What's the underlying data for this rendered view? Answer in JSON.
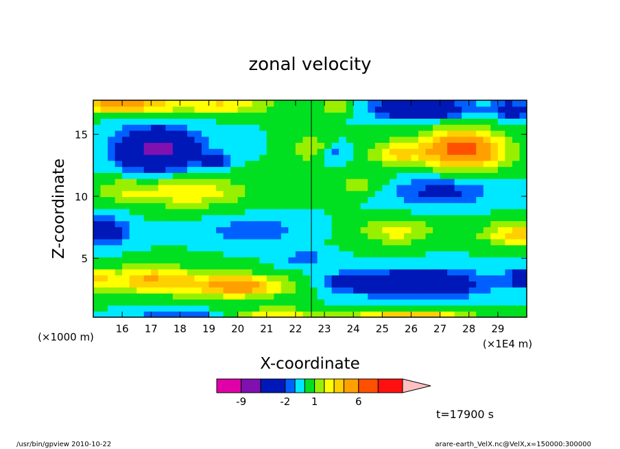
{
  "chart_data": {
    "type": "heatmap",
    "title": "zonal velocity",
    "xlabel": "X-coordinate",
    "ylabel": "Z-coordinate",
    "x_unit_label": "(×1E4 m)",
    "y_unit_label": "(×1000 m)",
    "x_ticks": [
      "16",
      "17",
      "18",
      "19",
      "20",
      "21",
      "22",
      "23",
      "24",
      "25",
      "26",
      "27",
      "28",
      "29"
    ],
    "y_ticks": [
      "5",
      "10",
      "15"
    ],
    "x_tick_values": [
      16,
      17,
      18,
      19,
      20,
      21,
      22,
      23,
      24,
      25,
      26,
      27,
      28,
      29
    ],
    "y_tick_values": [
      5,
      10,
      15
    ],
    "xlim": [
      15,
      30
    ],
    "ylim": [
      0.25,
      17.75
    ],
    "colorbar": {
      "tick_labels": [
        "-9",
        "-2",
        "1",
        "6"
      ],
      "bounds": [
        -15,
        -9,
        -6,
        -2,
        -1,
        0,
        1,
        2,
        3,
        4,
        6,
        9,
        15
      ],
      "colors": [
        "#e000a8",
        "#8010b0",
        "#0018b8",
        "#0060ff",
        "#00e8ff",
        "#00e020",
        "#98f000",
        "#ffff00",
        "#ffd000",
        "#ffa000",
        "#ff5000",
        "#ff1010",
        "#ff7878"
      ],
      "extend_color": "#ffc0c0"
    },
    "time_label": "t=17900 s",
    "levels": [
      -15,
      -9,
      -6,
      -2,
      -1,
      0,
      1,
      2,
      3,
      4,
      6,
      9,
      15
    ],
    "nx": 60,
    "nz": 36,
    "features": [
      {
        "x": 17.2,
        "z": 13.8,
        "sx": 1.3,
        "sz": 1.6,
        "amp": -7
      },
      {
        "x": 19.2,
        "z": 12.9,
        "sx": 0.5,
        "sz": 0.6,
        "amp": -3
      },
      {
        "x": 16.0,
        "z": 17.4,
        "sx": 1.7,
        "sz": 0.7,
        "amp": 5
      },
      {
        "x": 19.5,
        "z": 17.4,
        "sx": 1.7,
        "sz": 0.7,
        "amp": 3
      },
      {
        "x": 26.3,
        "z": 17.1,
        "sx": 1.5,
        "sz": 0.7,
        "amp": -6
      },
      {
        "x": 29.5,
        "z": 17.0,
        "sx": 0.7,
        "sz": 0.8,
        "amp": -3
      },
      {
        "x": 23.5,
        "z": 17.2,
        "sx": 0.6,
        "sz": 0.6,
        "amp": 2
      },
      {
        "x": 27.8,
        "z": 13.8,
        "sx": 1.4,
        "sz": 1.5,
        "amp": 7
      },
      {
        "x": 25.5,
        "z": 13.5,
        "sx": 0.9,
        "sz": 1.0,
        "amp": 3
      },
      {
        "x": 18.3,
        "z": 10.4,
        "sx": 1.8,
        "sz": 1.2,
        "amp": 3
      },
      {
        "x": 16.0,
        "z": 10.5,
        "sx": 0.9,
        "sz": 1.0,
        "amp": 1.5
      },
      {
        "x": 27.0,
        "z": 10.4,
        "sx": 1.6,
        "sz": 1.1,
        "amp": -2.5
      },
      {
        "x": 24.2,
        "z": 11.0,
        "sx": 0.8,
        "sz": 0.9,
        "amp": 1.5
      },
      {
        "x": 15.3,
        "z": 7.2,
        "sx": 0.9,
        "sz": 1.1,
        "amp": -3.5
      },
      {
        "x": 20.5,
        "z": 7.3,
        "sx": 1.4,
        "sz": 0.9,
        "amp": -2
      },
      {
        "x": 22.3,
        "z": 5.0,
        "sx": 0.7,
        "sz": 0.6,
        "amp": -2
      },
      {
        "x": 29.7,
        "z": 7.0,
        "sx": 1.2,
        "sz": 1.0,
        "amp": 3.5
      },
      {
        "x": 25.5,
        "z": 7.2,
        "sx": 1.2,
        "sz": 1.0,
        "amp": 2.5
      },
      {
        "x": 17.0,
        "z": 3.3,
        "sx": 1.6,
        "sz": 1.1,
        "amp": 4
      },
      {
        "x": 20.0,
        "z": 2.8,
        "sx": 1.6,
        "sz": 0.9,
        "amp": 5
      },
      {
        "x": 15.1,
        "z": 3.4,
        "sx": 0.5,
        "sz": 0.7,
        "amp": 3
      },
      {
        "x": 26.3,
        "z": 3.0,
        "sx": 2.2,
        "sz": 1.1,
        "amp": -4.5
      },
      {
        "x": 24.0,
        "z": 3.2,
        "sx": 0.8,
        "sz": 0.7,
        "amp": -3
      },
      {
        "x": 29.8,
        "z": 3.5,
        "sx": 0.5,
        "sz": 0.8,
        "amp": -3
      },
      {
        "x": 22.5,
        "z": 14.0,
        "sx": 0.6,
        "sz": 1.2,
        "amp": 1.8
      },
      {
        "x": 23.4,
        "z": 13.5,
        "sx": 0.4,
        "sz": 0.7,
        "amp": -1.5
      },
      {
        "x": 21.3,
        "z": 0.4,
        "sx": 1.4,
        "sz": 0.6,
        "amp": 3
      },
      {
        "x": 18.0,
        "z": 0.4,
        "sx": 1.6,
        "sz": 0.4,
        "amp": -2
      },
      {
        "x": 26.0,
        "z": 0.4,
        "sx": 2.0,
        "sz": 0.5,
        "amp": 4
      }
    ]
  },
  "footer": {
    "left": "/usr/bin/gpview  2010-10-22",
    "right": "arare-earth_VelX.nc@VelX,x=150000:300000"
  }
}
